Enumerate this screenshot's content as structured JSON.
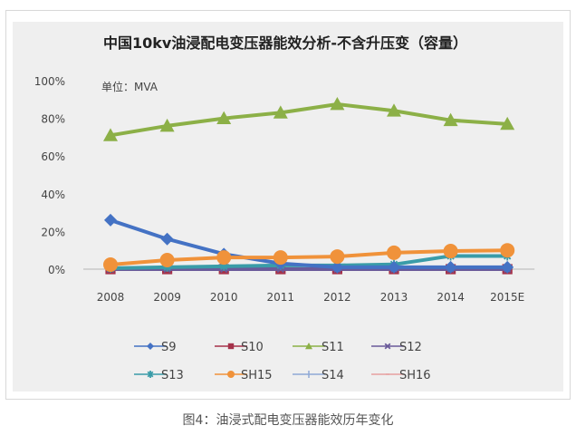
{
  "chart_data": {
    "type": "line",
    "title": "中国10kv油浸配电变压器能效分析-不含升压变（容量）",
    "unit_label": "单位：MVA",
    "categories": [
      "2008",
      "2009",
      "2010",
      "2011",
      "2012",
      "2013",
      "2014",
      "2015E"
    ],
    "ylim": [
      0,
      100
    ],
    "yticks": [
      "0%",
      "20%",
      "40%",
      "60%",
      "80%",
      "100%"
    ],
    "grid": false,
    "legend_position": "bottom",
    "series": [
      {
        "name": "S9",
        "color": "#4472c4",
        "marker": "diamond",
        "values": [
          26,
          16,
          8,
          3,
          1,
          1,
          1,
          1
        ]
      },
      {
        "name": "S10",
        "color": "#a5324a",
        "marker": "square",
        "values": [
          0,
          0,
          0,
          0,
          0,
          0,
          0,
          0
        ]
      },
      {
        "name": "S11",
        "color": "#8cb047",
        "marker": "triangle",
        "values": [
          71,
          76,
          80,
          83,
          87.5,
          84,
          79,
          77
        ]
      },
      {
        "name": "S12",
        "color": "#6a5a9a",
        "marker": "x",
        "values": [
          0,
          0,
          0,
          0,
          0,
          0,
          0,
          0
        ]
      },
      {
        "name": "S13",
        "color": "#3a9ca8",
        "marker": "star",
        "values": [
          0.5,
          1,
          1.5,
          2,
          2,
          2.5,
          7,
          7
        ]
      },
      {
        "name": "SH15",
        "color": "#f0923a",
        "marker": "circle",
        "values": [
          2.4,
          4.8,
          6.2,
          6.2,
          6.7,
          8.7,
          9.6,
          10
        ]
      },
      {
        "name": "S14",
        "color": "#8fa9d6",
        "marker": "plus",
        "values": [
          0,
          0,
          0,
          0,
          0,
          0,
          0,
          0
        ]
      },
      {
        "name": "SH16",
        "color": "#e7a0a0",
        "marker": "dash",
        "values": [
          0,
          0,
          0,
          0,
          0,
          0,
          0,
          0
        ]
      }
    ]
  },
  "caption": "图4：油浸式配电变压器能效历年变化"
}
